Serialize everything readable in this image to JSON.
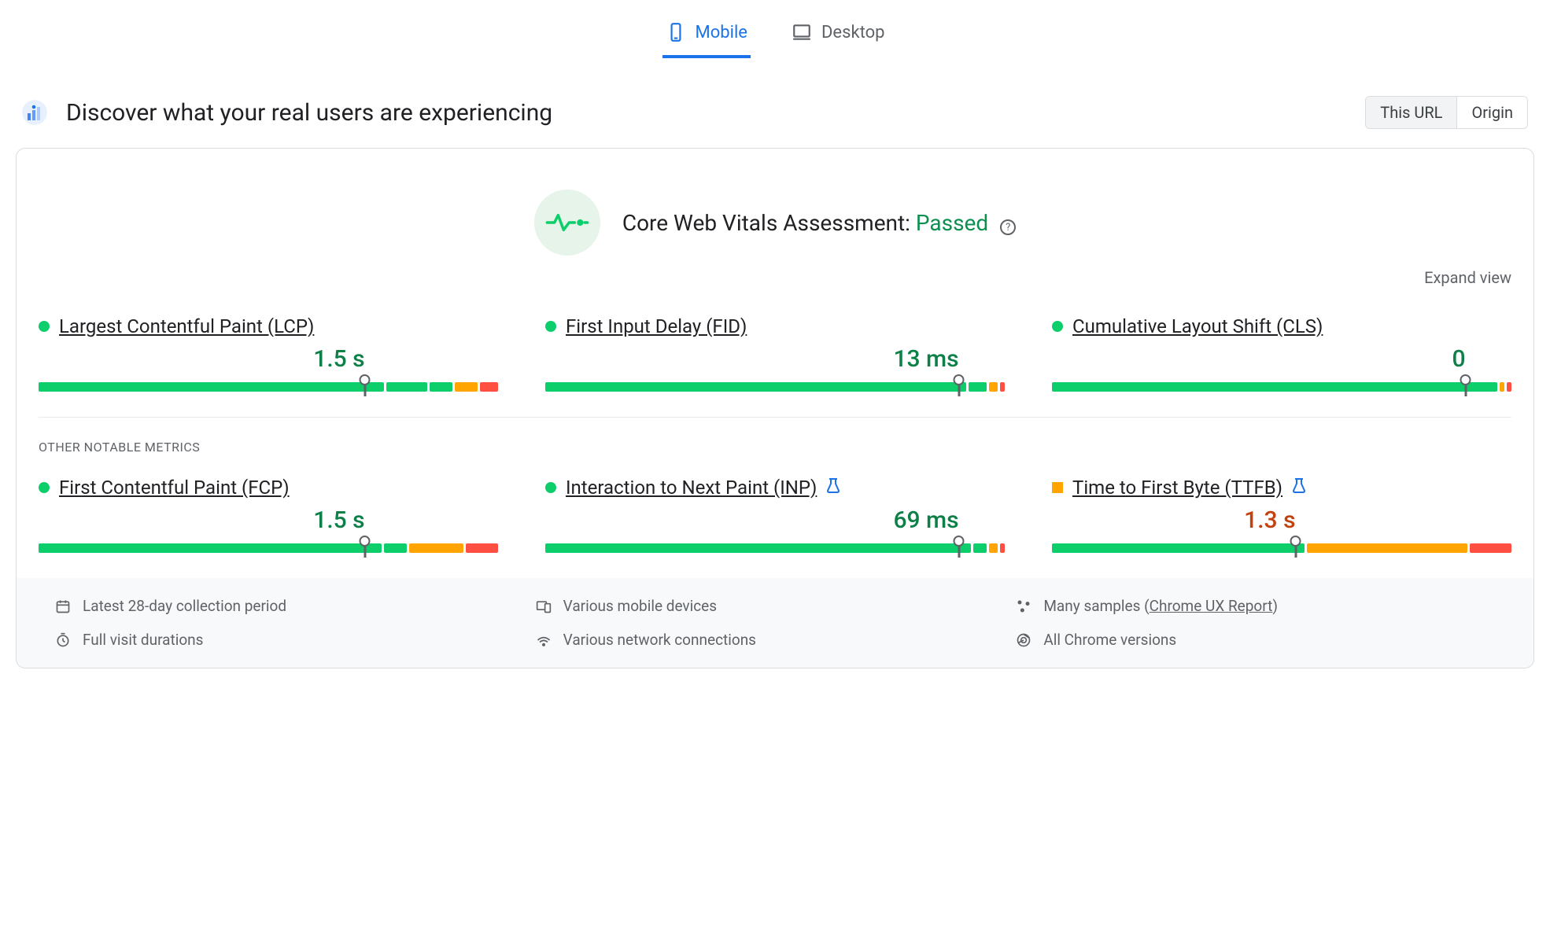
{
  "colors": {
    "good": "#0cce6b",
    "average": "#ffa400",
    "poor": "#ff4e42",
    "value_good": "#0d8048",
    "value_average": "#c2410c",
    "accent": "#1a73e8",
    "muted": "#5f6368",
    "text": "#202124",
    "border": "#dadce0",
    "footer_bg": "#f8f9fa",
    "assessment_bg": "#e6f4ea"
  },
  "tabs": [
    {
      "id": "mobile",
      "label": "Mobile",
      "active": true
    },
    {
      "id": "desktop",
      "label": "Desktop",
      "active": false
    }
  ],
  "header": {
    "title": "Discover what your real users are experiencing",
    "toggle": [
      {
        "id": "this-url",
        "label": "This URL",
        "active": true
      },
      {
        "id": "origin",
        "label": "Origin",
        "active": false
      }
    ]
  },
  "assessment": {
    "label": "Core Web Vitals Assessment:",
    "status": "Passed"
  },
  "expand_label": "Expand view",
  "section_label": "OTHER NOTABLE METRICS",
  "core_metrics": [
    {
      "id": "lcp",
      "name": "Largest Contentful Paint (LCP)",
      "value": "1.5 s",
      "status": "good",
      "value_color": "#0d8048",
      "marker_pct": 71,
      "segments": [
        {
          "width_pct": 76,
          "color": "#0cce6b"
        },
        {
          "width_pct": 9,
          "color": "#0cce6b"
        },
        {
          "width_pct": 5,
          "color": "#0cce6b"
        },
        {
          "width_pct": 5,
          "color": "#ffa400"
        },
        {
          "width_pct": 4,
          "color": "#ff4e42"
        }
      ]
    },
    {
      "id": "fid",
      "name": "First Input Delay (FID)",
      "value": "13 ms",
      "status": "good",
      "value_color": "#0d8048",
      "marker_pct": 90,
      "segments": [
        {
          "width_pct": 93,
          "color": "#0cce6b"
        },
        {
          "width_pct": 4,
          "color": "#0cce6b"
        },
        {
          "width_pct": 2,
          "color": "#ffa400"
        },
        {
          "width_pct": 1,
          "color": "#ff4e42"
        }
      ]
    },
    {
      "id": "cls",
      "name": "Cumulative Layout Shift (CLS)",
      "value": "0",
      "status": "good",
      "value_color": "#0d8048",
      "marker_pct": 90,
      "segments": [
        {
          "width_pct": 98,
          "color": "#0cce6b"
        },
        {
          "width_pct": 1,
          "color": "#ffa400"
        },
        {
          "width_pct": 1,
          "color": "#ff4e42"
        }
      ]
    }
  ],
  "other_metrics": [
    {
      "id": "fcp",
      "name": "First Contentful Paint (FCP)",
      "value": "1.5 s",
      "status": "good",
      "value_color": "#0d8048",
      "marker_pct": 71,
      "segments": [
        {
          "width_pct": 75,
          "color": "#0cce6b"
        },
        {
          "width_pct": 5,
          "color": "#0cce6b"
        },
        {
          "width_pct": 12,
          "color": "#ffa400"
        },
        {
          "width_pct": 7,
          "color": "#ff4e42"
        }
      ]
    },
    {
      "id": "inp",
      "name": "Interaction to Next Paint (INP)",
      "value": "69 ms",
      "status": "good",
      "value_color": "#0d8048",
      "marker_pct": 90,
      "experimental": true,
      "segments": [
        {
          "width_pct": 94,
          "color": "#0cce6b"
        },
        {
          "width_pct": 3,
          "color": "#0cce6b"
        },
        {
          "width_pct": 2,
          "color": "#ffa400"
        },
        {
          "width_pct": 1,
          "color": "#ff4e42"
        }
      ]
    },
    {
      "id": "ttfb",
      "name": "Time to First Byte (TTFB)",
      "value": "1.3 s",
      "status": "average",
      "value_color": "#c2410c",
      "marker_pct": 53,
      "experimental": true,
      "segments": [
        {
          "width_pct": 55,
          "color": "#0cce6b"
        },
        {
          "width_pct": 35,
          "color": "#ffa400"
        },
        {
          "width_pct": 9,
          "color": "#ff4e42"
        }
      ]
    }
  ],
  "footer": [
    {
      "icon": "calendar",
      "text": "Latest 28-day collection period"
    },
    {
      "icon": "devices",
      "text": "Various mobile devices"
    },
    {
      "icon": "samples",
      "text_prefix": "Many samples (",
      "link": "Chrome UX Report",
      "text_suffix": ")"
    },
    {
      "icon": "timer",
      "text": "Full visit durations"
    },
    {
      "icon": "network",
      "text": "Various network connections"
    },
    {
      "icon": "chrome",
      "text": "All Chrome versions"
    }
  ]
}
